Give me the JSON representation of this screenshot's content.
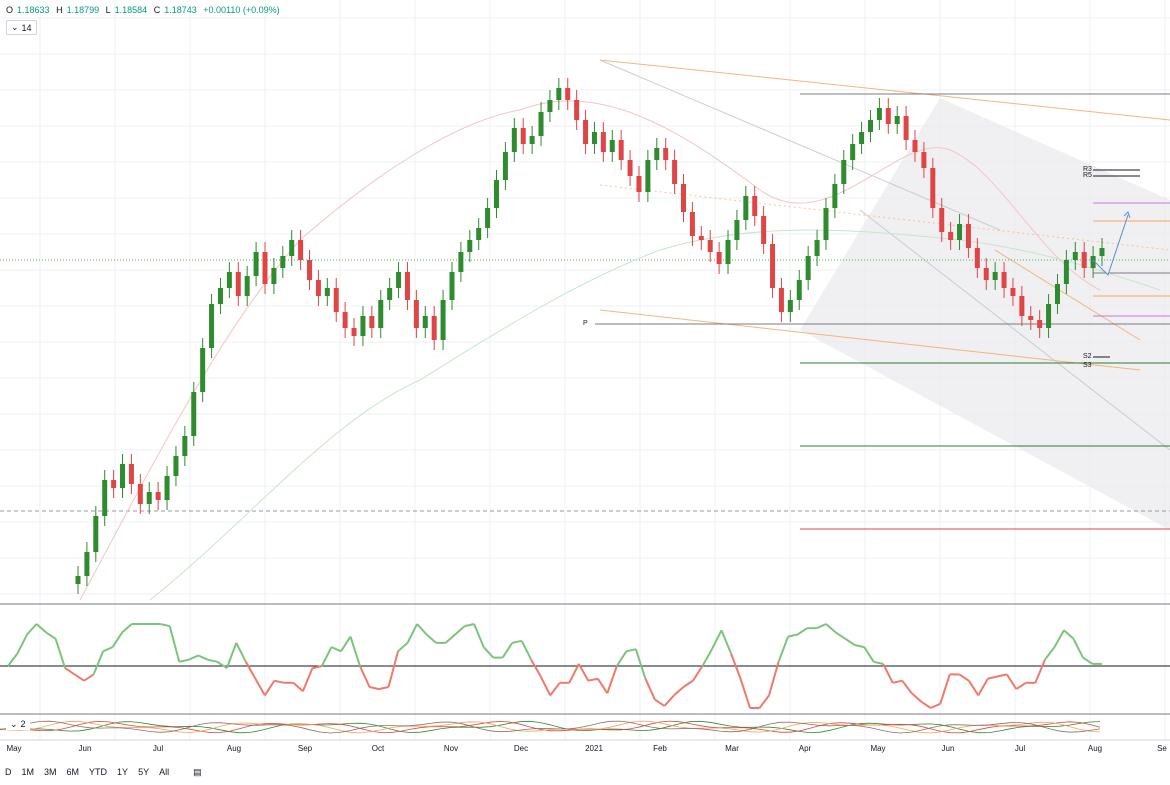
{
  "header": {
    "open_label": "O",
    "open": "1.18633",
    "high_label": "H",
    "high": "1.18799",
    "low_label": "L",
    "low": "1.18584",
    "close_label": "C",
    "close": "1.18743",
    "change": "+0.00110 (+0.09%)"
  },
  "indicator_chip_1": {
    "icon": "chevron-down-icon",
    "value": "14"
  },
  "indicator_chip_2": {
    "icon": "chevron-down-icon",
    "value": "2"
  },
  "pivot_labels": {
    "p": "P",
    "r3": "R3",
    "r5": "R5",
    "s2": "S2",
    "s3": "S3"
  },
  "timeline": [
    "May",
    "Jun",
    "Jul",
    "Aug",
    "Sep",
    "Oct",
    "Nov",
    "Dec",
    "2021",
    "Feb",
    "Mar",
    "Apr",
    "May",
    "Jun",
    "Jul",
    "Aug",
    "Se"
  ],
  "range_buttons": [
    "D",
    "1M",
    "3M",
    "6M",
    "YTD",
    "1Y",
    "5Y",
    "All"
  ],
  "colors": {
    "up": "#2e8b2e",
    "down": "#e04545",
    "rsi_up": "#7cc47c",
    "rsi_down": "#ef7a6a",
    "orange": "#f7a35c"
  },
  "chart_data": {
    "type": "candlestick",
    "series": [
      {
        "name": "",
        "values": [
          1.106,
          1.112,
          1.121,
          1.13,
          1.128,
          1.134,
          1.129,
          1.124,
          1.127,
          1.125,
          1.131,
          1.136,
          1.141,
          1.152,
          1.163,
          1.174,
          1.178,
          1.182,
          1.176,
          1.181,
          1.187,
          1.179,
          1.183,
          1.186,
          1.19,
          1.185,
          1.18,
          1.176,
          1.178,
          1.172,
          1.168,
          1.166,
          1.171,
          1.168,
          1.175,
          1.178,
          1.182,
          1.175,
          1.168,
          1.171,
          1.165,
          1.175,
          1.182,
          1.187,
          1.19,
          1.193,
          1.198,
          1.205,
          1.212,
          1.218,
          1.214,
          1.216,
          1.222,
          1.225,
          1.228,
          1.225,
          1.22,
          1.214,
          1.217,
          1.212,
          1.215,
          1.21,
          1.206,
          1.202,
          1.21,
          1.213,
          1.21,
          1.204,
          1.197,
          1.191,
          1.19,
          1.187,
          1.184,
          1.19,
          1.195,
          1.201,
          1.196,
          1.189,
          1.178,
          1.172,
          1.175,
          1.18,
          1.186,
          1.19,
          1.198,
          1.204,
          1.21,
          1.214,
          1.217,
          1.22,
          1.223,
          1.219,
          1.221,
          1.215,
          1.212,
          1.208,
          1.198,
          1.192,
          1.19,
          1.194,
          1.188,
          1.183,
          1.18,
          1.182,
          1.178,
          1.176,
          1.171,
          1.17,
          1.168,
          1.174,
          1.179,
          1.185,
          1.187,
          1.183,
          1.186,
          1.188
        ]
      }
    ],
    "indicator_levels": [
      "R3",
      "R5",
      "P",
      "S2",
      "S3"
    ]
  }
}
